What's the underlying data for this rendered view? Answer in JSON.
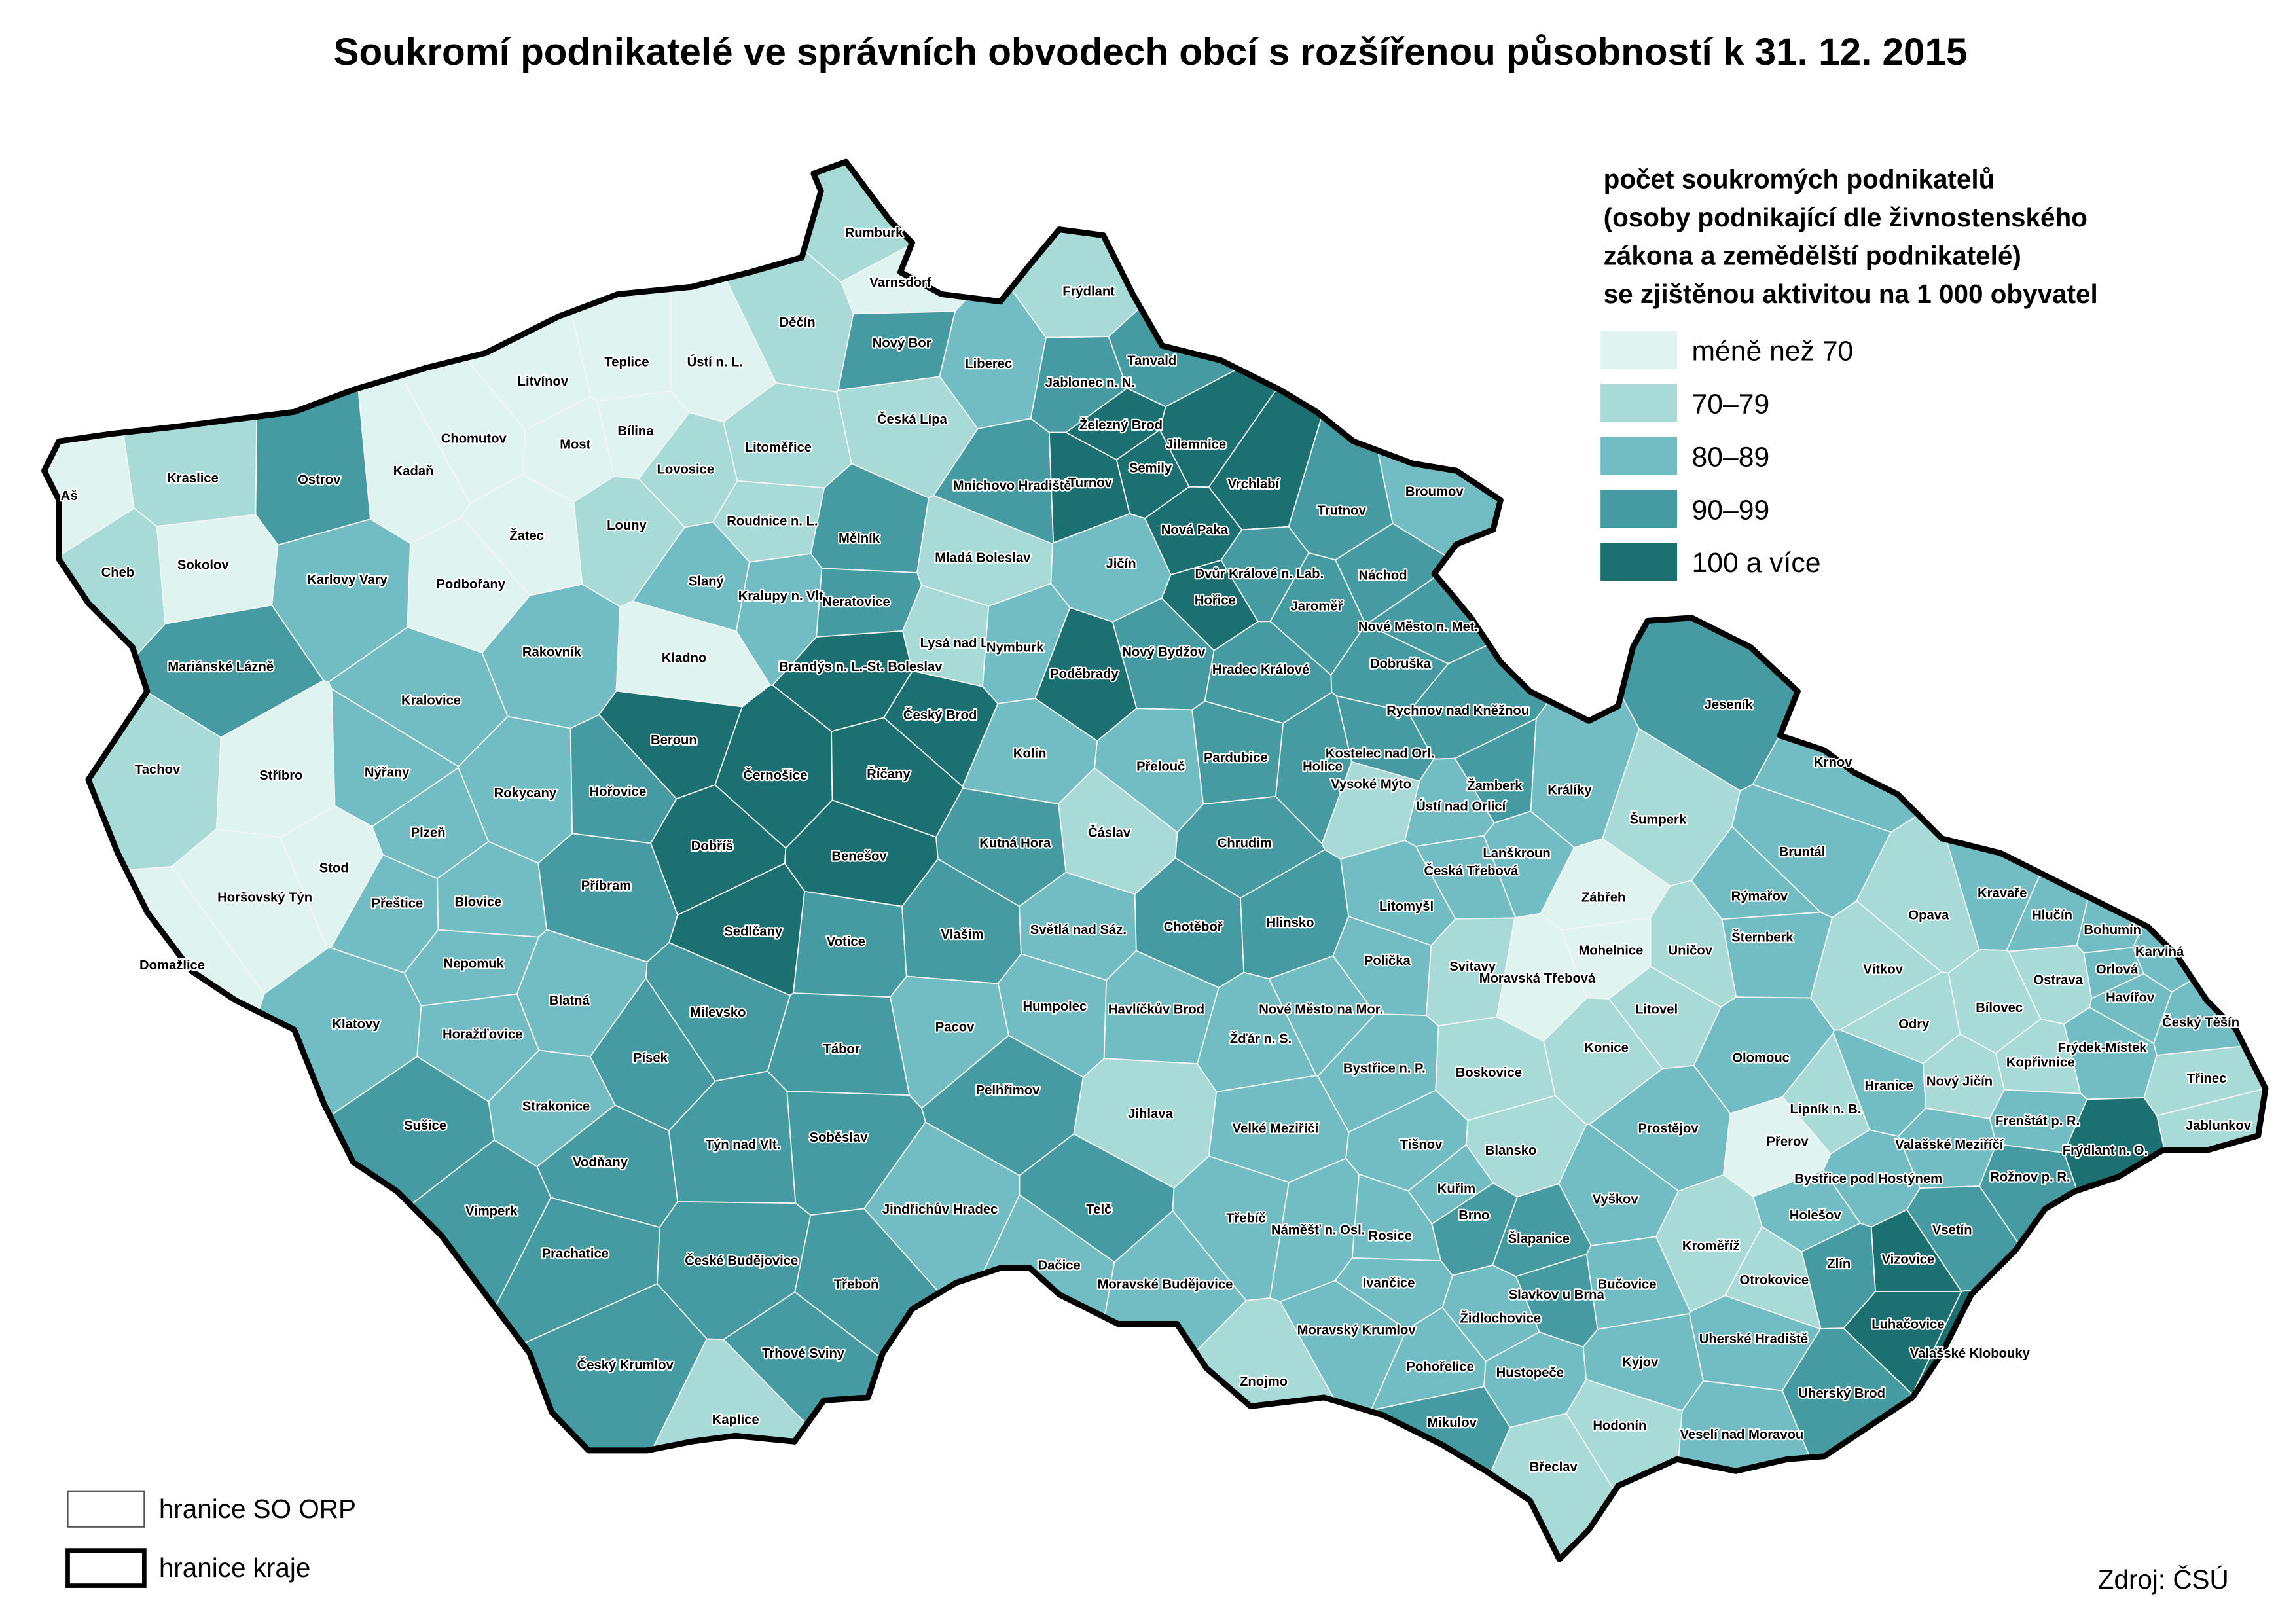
{
  "title": "Soukromí podnikatelé ve správních obvodech obcí s rozšířenou působností k 31. 12. 2015",
  "legend": {
    "title": [
      "počet soukromých podnikatelů",
      "(osoby podnikající dle živnostenského",
      "zákona a zemědělští podnikatelé)",
      "se zjištěnou aktivitou na 1 000 obyvatel"
    ],
    "items": [
      {
        "label": "méně než 70",
        "color": "#dff3f0"
      },
      {
        "label": "70–79",
        "color": "#a8dad8"
      },
      {
        "label": "80–89",
        "color": "#72bdc3"
      },
      {
        "label": "90–99",
        "color": "#459ba1"
      },
      {
        "label": "100 a více",
        "color": "#1d7072"
      }
    ]
  },
  "boundaries": [
    "hranice SO ORP",
    "hranice kraje"
  ],
  "source": "Zdroj: ČSÚ",
  "regions": [
    {
      "name": "Rumburk",
      "level": 1
    },
    {
      "name": "Varnsdorf",
      "level": 0
    },
    {
      "name": "Frýdlant",
      "level": 1
    },
    {
      "name": "Děčín",
      "level": 1
    },
    {
      "name": "Nový Bor",
      "level": 3
    },
    {
      "name": "Liberec",
      "level": 2
    },
    {
      "name": "Tanvald",
      "level": 3
    },
    {
      "name": "Jablonec n. N.",
      "level": 3
    },
    {
      "name": "Teplice",
      "level": 0
    },
    {
      "name": "Ústí n. L.",
      "level": 0
    },
    {
      "name": "Litvínov",
      "level": 0
    },
    {
      "name": "Česká Lípa",
      "level": 1
    },
    {
      "name": "Železný Brod",
      "level": 4
    },
    {
      "name": "Jilemnice",
      "level": 4
    },
    {
      "name": "Chomutov",
      "level": 0
    },
    {
      "name": "Most",
      "level": 0
    },
    {
      "name": "Bílina",
      "level": 0
    },
    {
      "name": "Litoměřice",
      "level": 1
    },
    {
      "name": "Kraslice",
      "level": 1
    },
    {
      "name": "Ostrov",
      "level": 3
    },
    {
      "name": "Kadaň",
      "level": 0
    },
    {
      "name": "Lovosice",
      "level": 1
    },
    {
      "name": "Mnichovo Hradiště",
      "level": 3
    },
    {
      "name": "Turnov",
      "level": 4
    },
    {
      "name": "Semily",
      "level": 4
    },
    {
      "name": "Vrchlabí",
      "level": 4
    },
    {
      "name": "Broumov",
      "level": 2
    },
    {
      "name": "Aš",
      "level": 0
    },
    {
      "name": "Trutnov",
      "level": 3
    },
    {
      "name": "Žatec",
      "level": 0
    },
    {
      "name": "Louny",
      "level": 1
    },
    {
      "name": "Roudnice n. L.",
      "level": 1
    },
    {
      "name": "Mělník",
      "level": 3
    },
    {
      "name": "Nová Paka",
      "level": 4
    },
    {
      "name": "Sokolov",
      "level": 0
    },
    {
      "name": "Cheb",
      "level": 1
    },
    {
      "name": "Karlovy Vary",
      "level": 2
    },
    {
      "name": "Mladá Boleslav",
      "level": 1
    },
    {
      "name": "Jičín",
      "level": 2
    },
    {
      "name": "Dvůr Králové n. Lab.",
      "level": 3
    },
    {
      "name": "Náchod",
      "level": 3
    },
    {
      "name": "Podbořany",
      "level": 0
    },
    {
      "name": "Slaný",
      "level": 2
    },
    {
      "name": "Kralupy n. Vlt.",
      "level": 2
    },
    {
      "name": "Neratovice",
      "level": 3
    },
    {
      "name": "Hořice",
      "level": 4
    },
    {
      "name": "Jaroměř",
      "level": 3
    },
    {
      "name": "Nové Město n. Met.",
      "level": 3
    },
    {
      "name": "Rakovník",
      "level": 2
    },
    {
      "name": "Kladno",
      "level": 0
    },
    {
      "name": "Brandýs n. L.-St. Boleslav",
      "level": 4
    },
    {
      "name": "Lysá nad L.",
      "level": 1
    },
    {
      "name": "Nymburk",
      "level": 2
    },
    {
      "name": "Mariánské Lázně",
      "level": 3
    },
    {
      "name": "Poděbrady",
      "level": 4
    },
    {
      "name": "Nový Bydžov",
      "level": 3
    },
    {
      "name": "Hradec Králové",
      "level": 3
    },
    {
      "name": "Dobruška",
      "level": 3
    },
    {
      "name": "Rychnov nad Kněžnou",
      "level": 3
    },
    {
      "name": "Kralovice",
      "level": 2
    },
    {
      "name": "Jeseník",
      "level": 3
    },
    {
      "name": "Český Brod",
      "level": 4
    },
    {
      "name": "Beroun",
      "level": 4
    },
    {
      "name": "Kostelec nad Orl.",
      "level": 3
    },
    {
      "name": "Holice",
      "level": 3
    },
    {
      "name": "Pardubice",
      "level": 3
    },
    {
      "name": "Přelouč",
      "level": 2
    },
    {
      "name": "Kolín",
      "level": 2
    },
    {
      "name": "Krnov",
      "level": 2
    },
    {
      "name": "Tachov",
      "level": 1
    },
    {
      "name": "Stříbro",
      "level": 0
    },
    {
      "name": "Nýřany",
      "level": 2
    },
    {
      "name": "Černošice",
      "level": 4
    },
    {
      "name": "Říčany",
      "level": 4
    },
    {
      "name": "Žamberk",
      "level": 3
    },
    {
      "name": "Králíky",
      "level": 2
    },
    {
      "name": "Rokycany",
      "level": 2
    },
    {
      "name": "Hořovice",
      "level": 3
    },
    {
      "name": "Vysoké Mýto",
      "level": 1
    },
    {
      "name": "Ústí nad Orlicí",
      "level": 2
    },
    {
      "name": "Šumperk",
      "level": 1
    },
    {
      "name": "Plzeň",
      "level": 2
    },
    {
      "name": "Čáslav",
      "level": 1
    },
    {
      "name": "Dobříš",
      "level": 4
    },
    {
      "name": "Benešov",
      "level": 4
    },
    {
      "name": "Kutná Hora",
      "level": 3
    },
    {
      "name": "Chrudim",
      "level": 3
    },
    {
      "name": "Lanškroun",
      "level": 2
    },
    {
      "name": "Česká Třebová",
      "level": 2
    },
    {
      "name": "Bruntál",
      "level": 2
    },
    {
      "name": "Stod",
      "level": 0
    },
    {
      "name": "Horšovský Týn",
      "level": 0
    },
    {
      "name": "Přeštice",
      "level": 2
    },
    {
      "name": "Blovice",
      "level": 2
    },
    {
      "name": "Příbram",
      "level": 3
    },
    {
      "name": "Zábřeh",
      "level": 0
    },
    {
      "name": "Rýmařov",
      "level": 2
    },
    {
      "name": "Kravaře",
      "level": 2
    },
    {
      "name": "Hlučín",
      "level": 2
    },
    {
      "name": "Bohumín",
      "level": 2
    },
    {
      "name": "Karviná",
      "level": 2
    },
    {
      "name": "Opava",
      "level": 1
    },
    {
      "name": "Sedlčany",
      "level": 4
    },
    {
      "name": "Votice",
      "level": 3
    },
    {
      "name": "Vlašim",
      "level": 3
    },
    {
      "name": "Světlá nad Sáz.",
      "level": 2
    },
    {
      "name": "Chotěboř",
      "level": 3
    },
    {
      "name": "Hlinsko",
      "level": 3
    },
    {
      "name": "Litomyšl",
      "level": 2
    },
    {
      "name": "Polička",
      "level": 2
    },
    {
      "name": "Svitavy",
      "level": 1
    },
    {
      "name": "Moravská Třebová",
      "level": 0
    },
    {
      "name": "Mohelnice",
      "level": 0
    },
    {
      "name": "Uničov",
      "level": 1
    },
    {
      "name": "Šternberk",
      "level": 2
    },
    {
      "name": "Nepomuk",
      "level": 2
    },
    {
      "name": "Domažlice",
      "level": 0
    },
    {
      "name": "Vítkov",
      "level": 1
    },
    {
      "name": "Ostrava",
      "level": 1
    },
    {
      "name": "Orlová",
      "level": 2
    },
    {
      "name": "Havířov",
      "level": 2
    },
    {
      "name": "Český Těšín",
      "level": 2
    },
    {
      "name": "Blatná",
      "level": 2
    },
    {
      "name": "Milevsko",
      "level": 3
    },
    {
      "name": "Humpolec",
      "level": 2
    },
    {
      "name": "Havlíčkův Brod",
      "level": 2
    },
    {
      "name": "Nové Město na Mor.",
      "level": 2
    },
    {
      "name": "Litovel",
      "level": 1
    },
    {
      "name": "Odry",
      "level": 1
    },
    {
      "name": "Bílovec",
      "level": 1
    },
    {
      "name": "Frýdek-Místek",
      "level": 2
    },
    {
      "name": "Klatovy",
      "level": 2
    },
    {
      "name": "Pacov",
      "level": 2
    },
    {
      "name": "Žďár n. S.",
      "level": 2
    },
    {
      "name": "Horažďovice",
      "level": 2
    },
    {
      "name": "Tábor",
      "level": 3
    },
    {
      "name": "Písek",
      "level": 3
    },
    {
      "name": "Konice",
      "level": 1
    },
    {
      "name": "Olomouc",
      "level": 2
    },
    {
      "name": "Třinec",
      "level": 1
    },
    {
      "name": "Bystřice n. P.",
      "level": 2
    },
    {
      "name": "Boskovice",
      "level": 1
    },
    {
      "name": "Kopřivnice",
      "level": 1
    },
    {
      "name": "Nový Jičín",
      "level": 1
    },
    {
      "name": "Pelhřimov",
      "level": 3
    },
    {
      "name": "Strakonice",
      "level": 2
    },
    {
      "name": "Hranice",
      "level": 2
    },
    {
      "name": "Lipník n. B.",
      "level": 1
    },
    {
      "name": "Jihlava",
      "level": 1
    },
    {
      "name": "Sušice",
      "level": 3
    },
    {
      "name": "Prostějov",
      "level": 2
    },
    {
      "name": "Frenštát p. R.",
      "level": 2
    },
    {
      "name": "Jablunkov",
      "level": 1
    },
    {
      "name": "Frýdlant n. O.",
      "level": 4
    },
    {
      "name": "Velké Meziříčí",
      "level": 2
    },
    {
      "name": "Týn nad Vlt.",
      "level": 3
    },
    {
      "name": "Soběslav",
      "level": 3
    },
    {
      "name": "Tišnov",
      "level": 2
    },
    {
      "name": "Přerov",
      "level": 0
    },
    {
      "name": "Valašské Meziříčí",
      "level": 2
    },
    {
      "name": "Blansko",
      "level": 1
    },
    {
      "name": "Vodňany",
      "level": 3
    },
    {
      "name": "Rožnov p. R.",
      "level": 3
    },
    {
      "name": "Bystřice pod Hostýnem",
      "level": 2
    },
    {
      "name": "Vimperk",
      "level": 3
    },
    {
      "name": "Jindřichův Hradec",
      "level": 2
    },
    {
      "name": "Telč",
      "level": 3
    },
    {
      "name": "Třebíč",
      "level": 2
    },
    {
      "name": "Kuřim",
      "level": 2
    },
    {
      "name": "Brno",
      "level": 3
    },
    {
      "name": "Vyškov",
      "level": 2
    },
    {
      "name": "Holešov",
      "level": 2
    },
    {
      "name": "Vsetín",
      "level": 3
    },
    {
      "name": "Rosice",
      "level": 2
    },
    {
      "name": "Náměšť n. Osl.",
      "level": 2
    },
    {
      "name": "Šlapanice",
      "level": 3
    },
    {
      "name": "Prachatice",
      "level": 3
    },
    {
      "name": "České Budějovice",
      "level": 3
    },
    {
      "name": "Kroměříž",
      "level": 1
    },
    {
      "name": "Vizovice",
      "level": 4
    },
    {
      "name": "Zlín",
      "level": 3
    },
    {
      "name": "Dačice",
      "level": 2
    },
    {
      "name": "Otrokovice",
      "level": 1
    },
    {
      "name": "Moravské Budějovice",
      "level": 2
    },
    {
      "name": "Ivančice",
      "level": 2
    },
    {
      "name": "Slavkov u Brna",
      "level": 3
    },
    {
      "name": "Bučovice",
      "level": 2
    },
    {
      "name": "Třeboň",
      "level": 3
    },
    {
      "name": "Luhačovice",
      "level": 4
    },
    {
      "name": "Valašské Klobouky",
      "level": 4
    },
    {
      "name": "Židlochovice",
      "level": 2
    },
    {
      "name": "Uherské Hradiště",
      "level": 2
    },
    {
      "name": "Moravský Krumlov",
      "level": 2
    },
    {
      "name": "Trhové Sviny",
      "level": 3
    },
    {
      "name": "Český Krumlov",
      "level": 3
    },
    {
      "name": "Pohořelice",
      "level": 2
    },
    {
      "name": "Hustopeče",
      "level": 2
    },
    {
      "name": "Kyjov",
      "level": 2
    },
    {
      "name": "Znojmo",
      "level": 1
    },
    {
      "name": "Uherský Brod",
      "level": 3
    },
    {
      "name": "Kaplice",
      "level": 1
    },
    {
      "name": "Mikulov",
      "level": 3
    },
    {
      "name": "Hodonín",
      "level": 1
    },
    {
      "name": "Veselí nad Moravou",
      "level": 2
    },
    {
      "name": "Břeclav",
      "level": 1
    }
  ]
}
